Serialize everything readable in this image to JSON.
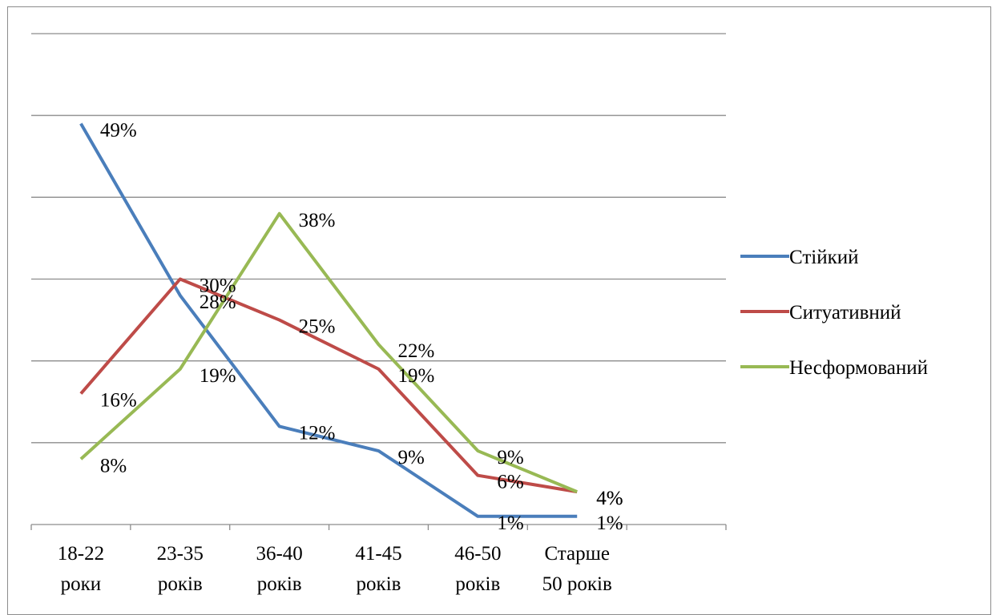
{
  "chart_data": {
    "type": "line",
    "title": "",
    "xlabel": "",
    "ylabel": "",
    "ylim": [
      0,
      60
    ],
    "grid": true,
    "legend_position": "right",
    "categories": [
      [
        "18-22",
        "роки"
      ],
      [
        "23-35",
        "років"
      ],
      [
        "36-40",
        "років"
      ],
      [
        "41-45",
        "років"
      ],
      [
        "46-50",
        "років"
      ],
      [
        "Старше",
        "50 років"
      ]
    ],
    "series": [
      {
        "name": "Стійкий",
        "color": "#4a7ebb",
        "values": [
          49,
          28,
          12,
          9,
          1,
          1
        ],
        "labels": [
          "49%",
          "28%",
          "12%",
          "9%",
          "1%",
          "1%"
        ]
      },
      {
        "name": "Ситуативний",
        "color": "#be4b48",
        "values": [
          16,
          30,
          25,
          19,
          6,
          4
        ],
        "labels": [
          "16%",
          "30%",
          "25%",
          "19%",
          "6%",
          "4%"
        ]
      },
      {
        "name": "Несформований",
        "color": "#98b954",
        "values": [
          8,
          19,
          38,
          22,
          9,
          4
        ],
        "labels": [
          "8%",
          "19%",
          "38%",
          "22%",
          "9%",
          "4%"
        ]
      }
    ]
  }
}
